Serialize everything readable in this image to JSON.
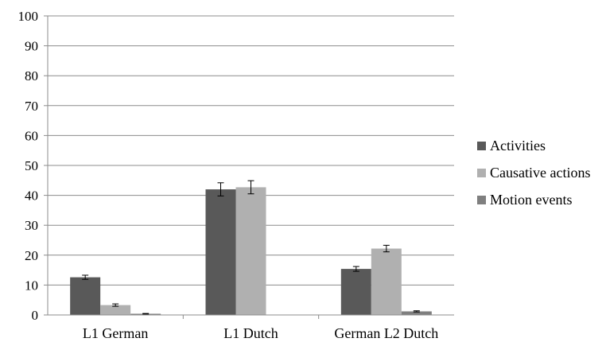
{
  "chart_data": {
    "type": "bar",
    "categories": [
      "L1 German",
      "L1 Dutch",
      "German L2 Dutch"
    ],
    "series": [
      {
        "name": "Activities",
        "color": "#595959",
        "values": [
          12.6,
          42.0,
          15.4
        ],
        "errors": [
          0.7,
          2.2,
          0.8
        ]
      },
      {
        "name": "Causative actions",
        "color": "#b0b0b0",
        "values": [
          3.3,
          42.7,
          22.2
        ],
        "errors": [
          0.4,
          2.2,
          1.1
        ]
      },
      {
        "name": "Motion events",
        "color": "#7f7f7f",
        "values": [
          0.4,
          0,
          1.2
        ],
        "errors": [
          0.1,
          0,
          0.2
        ]
      }
    ],
    "ylim": [
      0,
      100
    ],
    "yticks": [
      "0",
      "10",
      "20",
      "30",
      "40",
      "50",
      "60",
      "70",
      "80",
      "90",
      "100"
    ],
    "grid": true,
    "legend_position": "right",
    "title": "",
    "xlabel": "",
    "ylabel": ""
  }
}
